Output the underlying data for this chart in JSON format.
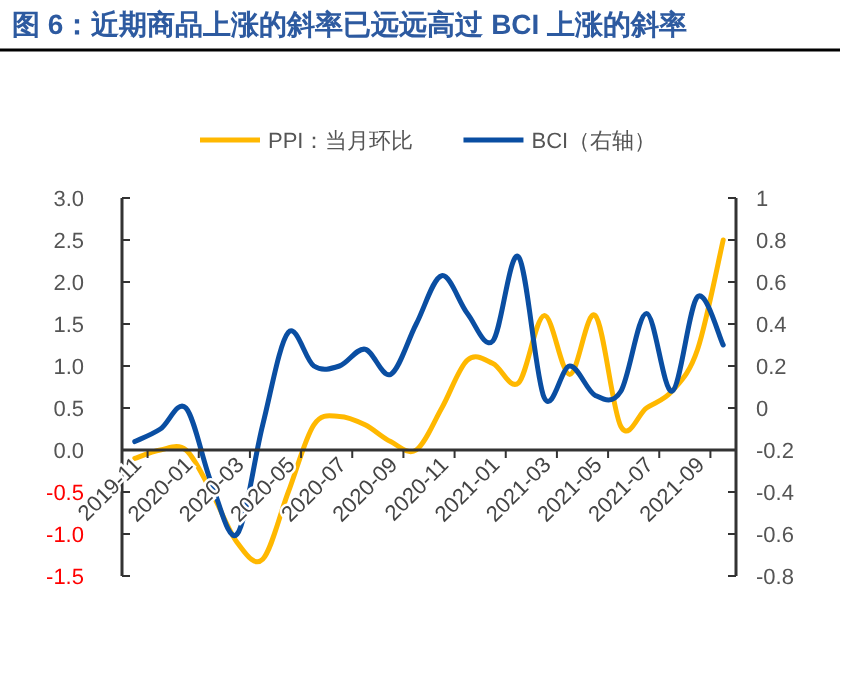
{
  "chart_data": {
    "type": "line",
    "title": "图 6：近期商品上涨的斜率已远远高过 BCI 上涨的斜率",
    "categories": [
      "2019-11",
      null,
      "2020-01",
      null,
      "2020-03",
      null,
      "2020-05",
      null,
      "2020-07",
      null,
      "2020-09",
      null,
      "2020-11",
      null,
      "2021-01",
      null,
      "2021-03",
      null,
      "2021-05",
      null,
      "2021-07",
      null,
      "2021-09",
      null
    ],
    "series": [
      {
        "name": "PPI：当月环比",
        "color": "#ffb800",
        "values": [
          -0.1,
          0.0,
          0.0,
          -0.5,
          -1.1,
          -1.3,
          -0.5,
          0.3,
          0.4,
          0.3,
          0.1,
          0.0,
          0.5,
          1.07,
          1.03,
          0.8,
          1.6,
          0.9,
          1.6,
          0.28,
          0.5,
          0.7,
          1.2,
          2.5
        ]
      },
      {
        "name": "BCI（右轴）",
        "color": "#0a4ea2",
        "axis": "y2",
        "values": [
          -0.16,
          -0.1,
          0.0,
          -0.36,
          -0.6,
          -0.08,
          0.36,
          0.2,
          0.2,
          0.28,
          0.16,
          0.4,
          0.63,
          0.45,
          0.32,
          0.72,
          0.05,
          0.2,
          0.06,
          0.08,
          0.45,
          0.08,
          0.53,
          0.3
        ]
      }
    ],
    "ylim": [
      -1.5,
      3.0
    ],
    "yticks": [
      {
        "value": -1.5,
        "label": "-1.5"
      },
      {
        "value": -1,
        "label": "-1.0"
      },
      {
        "value": -0.5,
        "label": "-0.5"
      },
      {
        "value": 0,
        "label": "0.0"
      },
      {
        "value": 0.5,
        "label": "0.5"
      },
      {
        "value": 1,
        "label": "1.0"
      },
      {
        "value": 1.5,
        "label": "1.5"
      },
      {
        "value": 2,
        "label": "2.0"
      },
      {
        "value": 2.5,
        "label": "2.5"
      },
      {
        "value": 3,
        "label": "3.0"
      }
    ],
    "y2lim": [
      -0.8,
      1.0
    ],
    "y2ticks": [
      -0.8,
      -0.6,
      -0.4,
      -0.2,
      0,
      0.2,
      0.4,
      0.6,
      0.8,
      1
    ],
    "legend": "top",
    "grid": false
  }
}
